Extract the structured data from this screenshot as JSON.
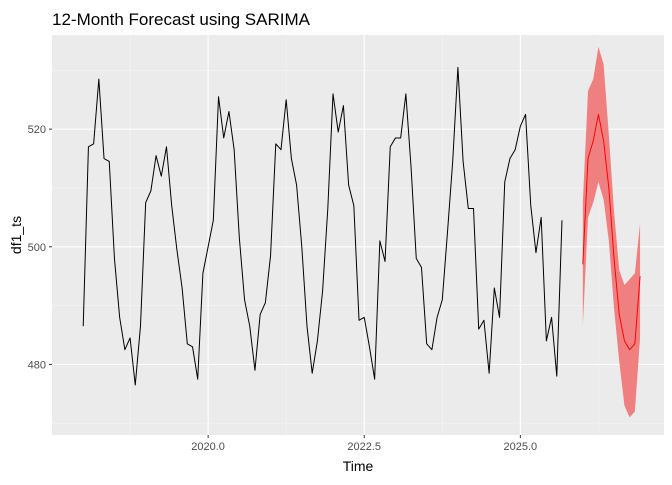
{
  "chart_data": {
    "type": "line",
    "title": "12-Month Forecast using SARIMA",
    "xlabel": "Time",
    "ylabel": "df1_ts",
    "xlim": [
      2017.5,
      2027.3
    ],
    "ylim": [
      468,
      536
    ],
    "x_ticks": [
      2020.0,
      2022.5,
      2025.0
    ],
    "x_tick_labels": [
      "2020.0",
      "2022.5",
      "2025.0"
    ],
    "y_ticks": [
      480,
      500,
      520
    ],
    "y_tick_labels": [
      "480",
      "500",
      "520"
    ],
    "grid": true,
    "legend": "none",
    "colors": {
      "panel": "#ebebeb",
      "grid_major": "#ffffff",
      "grid_minor": "#f5f5f5",
      "observed": "#000000",
      "forecast": "#ff0000",
      "band": "#f08080",
      "tick": "#333333"
    },
    "series": [
      {
        "role": "observed",
        "x_start": 2018.0,
        "step": 0.08333,
        "values": [
          486.5,
          517,
          517.5,
          528.5,
          515,
          514.5,
          498,
          488,
          482.5,
          484.5,
          476.5,
          486.5,
          507.5,
          509.5,
          515.5,
          512,
          517,
          507,
          499.5,
          493,
          483.5,
          483,
          477.5,
          495.5,
          500,
          504.5,
          525.5,
          518.5,
          523,
          516.5,
          501.5,
          491,
          486.5,
          479,
          488.5,
          490.5,
          498.5,
          517.5,
          516.5,
          525,
          515,
          510.5,
          500,
          486.5,
          478.5,
          484,
          492.5,
          506.5,
          526,
          519.5,
          524,
          510.5,
          507,
          487.5,
          488,
          483,
          477.5,
          501,
          497.5,
          517,
          518.5,
          518.5,
          526,
          513.5,
          498,
          496.5,
          483.5,
          482.5,
          488,
          491,
          502.5,
          514.5,
          530.5,
          514.5,
          506.5,
          506.5,
          486,
          487.5,
          478.5,
          493,
          488,
          511,
          515,
          516.5,
          520.5,
          522.5,
          507,
          499,
          505,
          484,
          488,
          478,
          504.5
        ]
      },
      {
        "role": "forecast",
        "x_start": 2026.0,
        "step": 0.08333,
        "values": [
          497,
          515,
          518,
          522.5,
          518,
          510,
          498,
          488.5,
          484,
          482.5,
          483.5,
          495
        ]
      }
    ],
    "band": {
      "x_start": 2026.0,
      "step": 0.08333,
      "lower": [
        486.5,
        505,
        507.5,
        511,
        508,
        501,
        489.5,
        480.5,
        473,
        471,
        472,
        484.5
      ],
      "upper": [
        507.5,
        526.5,
        528.5,
        534,
        531,
        519,
        506,
        496,
        493.5,
        494.5,
        495.5,
        504
      ]
    }
  }
}
